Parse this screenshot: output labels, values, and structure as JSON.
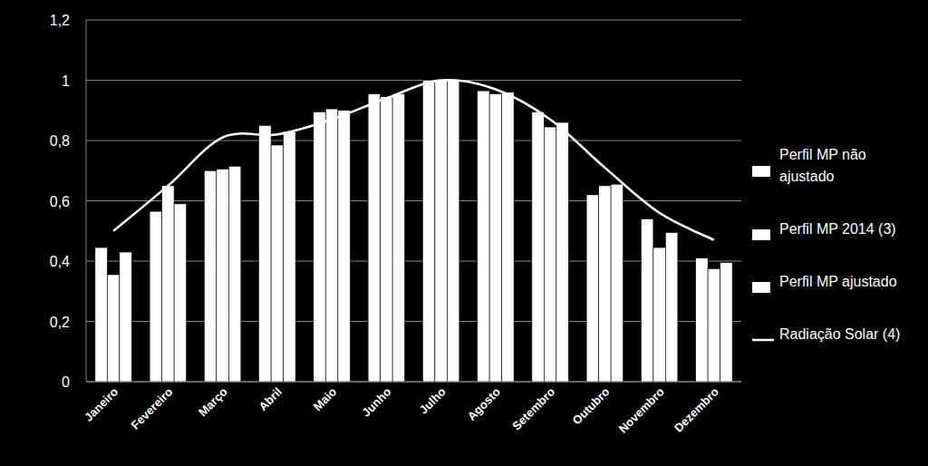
{
  "chart_data": {
    "type": "bar",
    "categories": [
      "Janeiro",
      "Fevereiro",
      "Março",
      "Abril",
      "Maio",
      "Junho",
      "Julho",
      "Agosto",
      "Setembro",
      "Outubro",
      "Novembro",
      "Dezembro"
    ],
    "series": [
      {
        "name": "Perfil MP não ajustado",
        "color": "#ffffff",
        "values": [
          0.445,
          0.565,
          0.7,
          0.85,
          0.895,
          0.955,
          1.0,
          0.965,
          0.895,
          0.62,
          0.54,
          0.41
        ]
      },
      {
        "name": "Perfil MP 2014 (3)",
        "color": "#ffffff",
        "values": [
          0.355,
          0.65,
          0.705,
          0.785,
          0.905,
          0.945,
          1.0,
          0.955,
          0.845,
          0.65,
          0.445,
          0.375
        ]
      },
      {
        "name": "Perfil MP ajustado",
        "color": "#ffffff",
        "values": [
          0.43,
          0.59,
          0.715,
          0.83,
          0.9,
          0.955,
          1.0,
          0.96,
          0.86,
          0.655,
          0.495,
          0.395
        ]
      },
      {
        "name": "Radiação Solar (4)",
        "color": "#ffffff",
        "type": "line",
        "values": [
          0.5,
          0.65,
          0.81,
          0.82,
          0.87,
          0.94,
          1.0,
          0.97,
          0.87,
          0.71,
          0.56,
          0.47
        ]
      }
    ],
    "ylim": [
      0,
      1.2
    ],
    "yticks": [
      0,
      {
        "value": 0.2,
        "label": "0,2"
      },
      {
        "value": 0.4,
        "label": "0,4"
      },
      {
        "value": 0.6,
        "label": "0,6"
      },
      {
        "value": 0.8,
        "label": "0,8"
      },
      1,
      {
        "value": 1.2,
        "label": "1,2"
      }
    ],
    "grid": true,
    "legend": "right"
  }
}
